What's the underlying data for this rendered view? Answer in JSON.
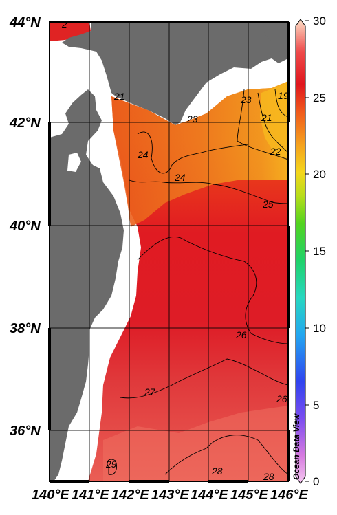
{
  "map": {
    "latitude_labels": [
      "44°N",
      "42°N",
      "40°N",
      "38°N",
      "36°N"
    ],
    "longitude_labels": [
      "140°E",
      "141°E",
      "142°E",
      "143°E",
      "144°E",
      "145°E",
      "146°E"
    ],
    "contour_labels": [
      "2",
      "21",
      "23",
      "19",
      "21",
      "22",
      "23",
      "24",
      "24",
      "25",
      "26",
      "27",
      "26",
      "29",
      "28",
      "28"
    ],
    "land_color": "#6b6b6b",
    "frame_color": "#000000"
  },
  "colorbar": {
    "ticks": [
      "0",
      "5",
      "10",
      "15",
      "20",
      "25",
      "30"
    ],
    "min": 0,
    "max": 30
  },
  "watermark": "Ocean Data View"
}
